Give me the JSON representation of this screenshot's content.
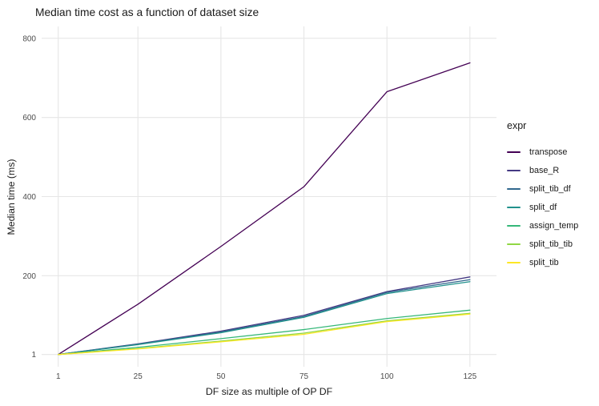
{
  "chart_data": {
    "type": "line",
    "title": "Median time cost as a function of dataset size",
    "xlabel": "DF size as multiple of OP DF",
    "ylabel": "Median time (ms)",
    "legend_title": "expr",
    "legend_position": "right",
    "grid": true,
    "background_color": "#ffffff",
    "gridline_color": "#e6e6e6",
    "tick_label_color": "#4d4d4d",
    "text_color": "#1a1a1a",
    "x": [
      1,
      25,
      50,
      75,
      100,
      125
    ],
    "x_ticks": [
      1,
      25,
      50,
      75,
      100,
      125
    ],
    "y_ticks": [
      1,
      200,
      400,
      600,
      800
    ],
    "xlim": [
      -4,
      133
    ],
    "ylim": [
      -30,
      830
    ],
    "series": [
      {
        "name": "transpose",
        "color": "#440154",
        "values": [
          1,
          128,
          274,
          425,
          665,
          738
        ]
      },
      {
        "name": "base_R",
        "color": "#443983",
        "values": [
          1,
          28,
          60,
          100,
          160,
          197
        ]
      },
      {
        "name": "split_tib_df",
        "color": "#31688e",
        "values": [
          1,
          27,
          58,
          97,
          158,
          190
        ]
      },
      {
        "name": "split_df",
        "color": "#21918c",
        "values": [
          1,
          26,
          56,
          95,
          155,
          185
        ]
      },
      {
        "name": "assign_temp",
        "color": "#35b779",
        "values": [
          1,
          19,
          41,
          64,
          92,
          113
        ]
      },
      {
        "name": "split_tib_tib",
        "color": "#90d743",
        "values": [
          1,
          16,
          35,
          55,
          86,
          105
        ]
      },
      {
        "name": "split_tib",
        "color": "#fde725",
        "values": [
          1,
          15,
          33,
          52,
          84,
          103
        ]
      }
    ]
  }
}
